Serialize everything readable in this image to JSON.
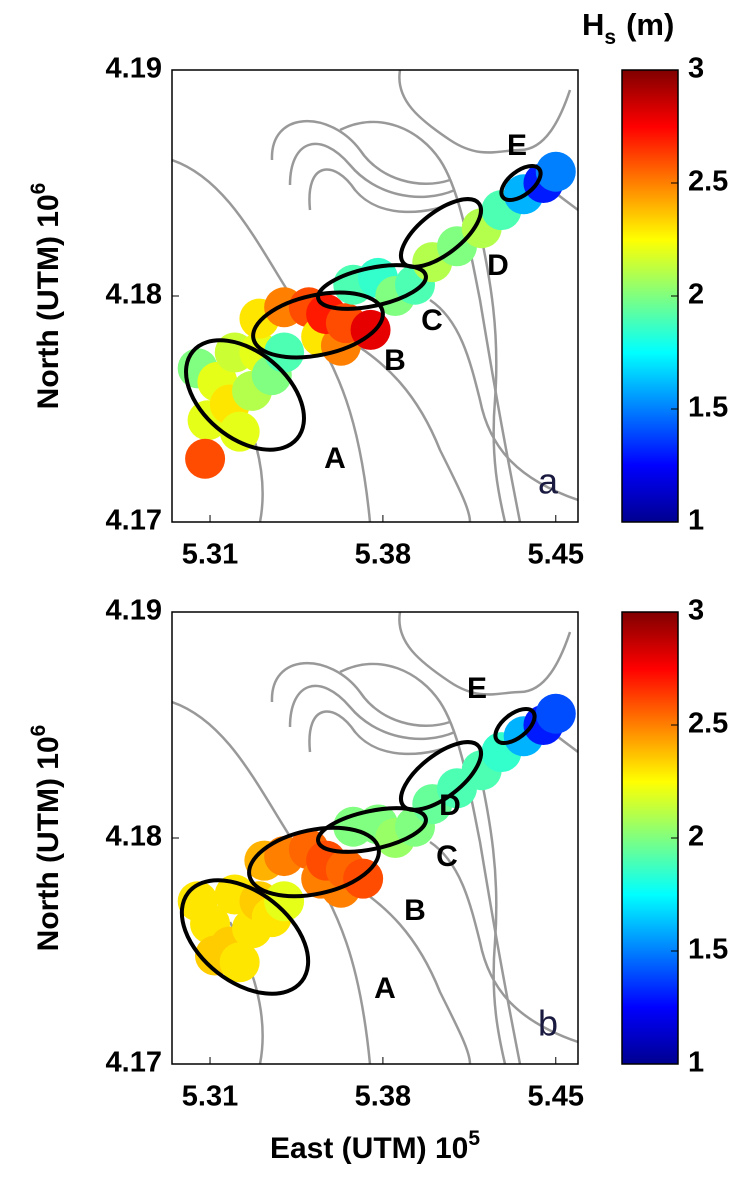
{
  "chart_data": [
    {
      "type": "scatter",
      "panel_label": "a",
      "colormap": "jet",
      "y_label": "North (UTM) 10",
      "y_label_exp": "6",
      "xlim": [
        5.2946,
        5.459
      ],
      "xticks": [
        5.31,
        5.38,
        5.45
      ],
      "ylim": [
        4.17,
        4.19
      ],
      "yticks": [
        4.17,
        4.18,
        4.19
      ],
      "colorbar": {
        "label": "H",
        "label_sub": "s",
        "label_unit": "(m)",
        "clim": [
          1,
          3
        ],
        "ticks": [
          1,
          1.5,
          2,
          2.5,
          3
        ]
      },
      "region_labels": [
        "A",
        "B",
        "C",
        "D",
        "E"
      ],
      "x": [
        5.305,
        5.313,
        5.309,
        5.318,
        5.322,
        5.32,
        5.327,
        5.33,
        5.335,
        5.34,
        5.33,
        5.34,
        5.35,
        5.355,
        5.363,
        5.357,
        5.365,
        5.375,
        5.368,
        5.378,
        5.385,
        5.393,
        5.4,
        5.41,
        5.42,
        5.428,
        5.437,
        5.445,
        5.45,
        5.308
      ],
      "y": [
        4.1768,
        4.1762,
        4.1745,
        4.1752,
        4.174,
        4.1775,
        4.1758,
        4.1775,
        4.1765,
        4.1775,
        4.179,
        4.1795,
        4.1795,
        4.1782,
        4.1778,
        4.1792,
        4.1788,
        4.1785,
        4.1805,
        4.1808,
        4.18,
        4.1805,
        4.1815,
        4.1822,
        4.183,
        4.1838,
        4.1845,
        4.185,
        4.1855,
        4.1728
      ],
      "values": [
        2.0,
        2.2,
        2.2,
        2.3,
        2.2,
        2.15,
        2.1,
        2.2,
        2.0,
        1.9,
        2.3,
        2.5,
        2.6,
        2.3,
        2.5,
        2.7,
        2.6,
        2.8,
        1.9,
        1.85,
        2.0,
        1.9,
        2.1,
        2.0,
        2.1,
        1.9,
        1.6,
        1.3,
        1.5,
        2.6
      ]
    },
    {
      "type": "scatter",
      "panel_label": "b",
      "colormap": "jet",
      "x_label": "East (UTM) 10",
      "x_label_exp": "5",
      "y_label": "North (UTM) 10",
      "y_label_exp": "6",
      "xlim": [
        5.2946,
        5.459
      ],
      "xticks": [
        5.31,
        5.38,
        5.45
      ],
      "ylim": [
        4.17,
        4.19
      ],
      "yticks": [
        4.17,
        4.18,
        4.19
      ],
      "colorbar": {
        "clim": [
          1,
          3
        ],
        "ticks": [
          1,
          1.5,
          2,
          2.5,
          3
        ]
      },
      "region_labels": [
        "A",
        "B",
        "C",
        "D",
        "E"
      ],
      "x": [
        5.305,
        5.31,
        5.312,
        5.318,
        5.322,
        5.32,
        5.327,
        5.33,
        5.335,
        5.34,
        5.332,
        5.34,
        5.35,
        5.355,
        5.363,
        5.357,
        5.365,
        5.372,
        5.368,
        5.378,
        5.385,
        5.393,
        5.4,
        5.41,
        5.42,
        5.428,
        5.437,
        5.445,
        5.45
      ],
      "y": [
        4.1772,
        4.1762,
        4.1748,
        4.1752,
        4.1745,
        4.1775,
        4.176,
        4.1772,
        4.1765,
        4.1772,
        4.179,
        4.1792,
        4.1795,
        4.1782,
        4.1778,
        4.179,
        4.1786,
        4.1782,
        4.1805,
        4.1806,
        4.18,
        4.1805,
        4.1815,
        4.1822,
        4.183,
        4.1838,
        4.1845,
        4.185,
        4.1855
      ],
      "values": [
        2.3,
        2.3,
        2.35,
        2.35,
        2.3,
        2.3,
        2.3,
        2.35,
        2.3,
        2.2,
        2.4,
        2.5,
        2.55,
        2.5,
        2.5,
        2.6,
        2.55,
        2.6,
        2.0,
        2.0,
        2.05,
        2.0,
        1.95,
        1.9,
        1.9,
        1.85,
        1.6,
        1.3,
        1.4
      ]
    }
  ]
}
